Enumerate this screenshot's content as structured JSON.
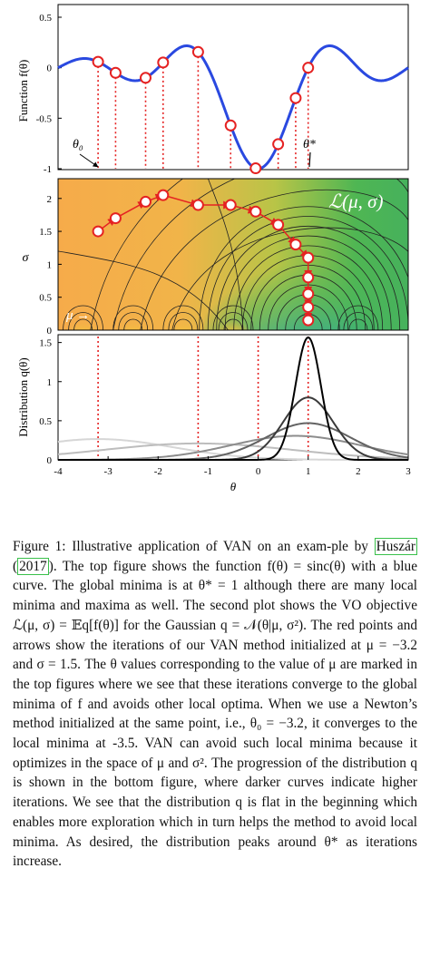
{
  "figure": {
    "panel_top": {
      "ylabel": "Function f(θ)",
      "yticks": [
        "0.5",
        "0",
        "-0.5",
        "-1"
      ],
      "theta0_label": "θ₀",
      "theta_star_label": "θ*"
    },
    "panel_mid": {
      "ylabel": "σ",
      "yticks": [
        "2",
        "1.5",
        "1",
        "0.5",
        "0"
      ],
      "objective_label": "ℒ(μ, σ)",
      "mu_arrow_label": "μ →"
    },
    "panel_bot": {
      "ylabel": "Distribution q(θ)",
      "yticks": [
        "1.5",
        "1",
        "0.5",
        "0"
      ],
      "xticks": [
        "-4",
        "-3",
        "-2",
        "-1",
        "0",
        "1",
        "2",
        "3"
      ],
      "xlabel": "θ"
    },
    "colors": {
      "curve": "#2a49e0",
      "iterate": "#e52222",
      "marker_fill": "#ffffff"
    }
  },
  "chart_data": [
    {
      "type": "line",
      "function": "sinc",
      "x_range": [
        -4,
        3
      ],
      "ylim": [
        -1,
        0.5
      ],
      "ylabel": "Function f(θ)",
      "series": [
        {
          "name": "f(θ) = sinc(θ)",
          "color": "#2a49e0"
        }
      ],
      "iterate_thetas": [
        -3.2,
        -2.85,
        -2.25,
        -1.9,
        -1.2,
        -0.55,
        -0.05,
        0.4,
        0.75,
        1.0
      ],
      "global_minimum": 1,
      "newton_start": -3.2,
      "grid": false
    },
    {
      "type": "heatmap",
      "x_range": [
        -4,
        3
      ],
      "ylim": [
        0,
        2.3
      ],
      "ylabel": "σ",
      "path_mu": [
        -3.2,
        -2.85,
        -2.25,
        -1.9,
        -1.2,
        -0.55,
        -0.05,
        0.4,
        0.75,
        1.0,
        1.0,
        1.0,
        1.0,
        1.0
      ],
      "path_sigma": [
        1.5,
        1.7,
        1.95,
        2.05,
        1.9,
        1.9,
        1.8,
        1.6,
        1.3,
        1.1,
        0.8,
        0.55,
        0.35,
        0.15
      ]
    },
    {
      "type": "line",
      "x_range": [
        -4,
        3
      ],
      "xlabel": "θ",
      "ylim": [
        0,
        1.6
      ],
      "ylabel": "Distribution q(θ)",
      "series": [
        {
          "mu": -3.2,
          "sigma": 1.5,
          "color": "#d6d6d6"
        },
        {
          "mu": -1.2,
          "sigma": 1.9,
          "color": "#bdbdbd"
        },
        {
          "mu": 0.75,
          "sigma": 1.3,
          "color": "#8c8c8c"
        },
        {
          "mu": 1.0,
          "sigma": 0.85,
          "color": "#636363"
        },
        {
          "mu": 1.0,
          "sigma": 0.5,
          "color": "#3a3a3a"
        },
        {
          "mu": 1.0,
          "sigma": 0.255,
          "color": "#000000"
        }
      ],
      "markers_theta": [
        -3.2,
        -1.2,
        0,
        1.0
      ]
    }
  ],
  "caption": {
    "lead": "Figure 1:  Illustrative application of VAN on an exam-ple by ",
    "cite_author": "Huszár",
    "cite_year": "2017",
    "body": ".  The top figure shows the function f(θ) = sinc(θ) with a blue curve.  The global minima is at θ* = 1 although there are many local minima and maxima as well.  The second plot shows the VO objective ℒ(μ, σ) = 𝔼q[f(θ)] for the Gaussian q = 𝒩(θ|μ, σ²). The red points and arrows show the iterations of our VAN method initialized at μ = −3.2 and σ = 1.5. The θ values corresponding to the value of μ are marked in the top figures where we see that these iterations converge to the global minima of f and avoids other local optima.  When we use a Newton’s method initialized at the same point, i.e., θ₀ = −3.2, it converges to the local minima at -3.5. VAN can avoid such local minima because it optimizes in the space of μ and σ². The progression of the distribution q is shown in the bottom figure, where darker curves indicate higher iterations. We see that the distribution q is flat in the beginning which enables more exploration which in turn helps the method to avoid local minima.  As desired, the distribution peaks around θ* as iterations increase."
  }
}
